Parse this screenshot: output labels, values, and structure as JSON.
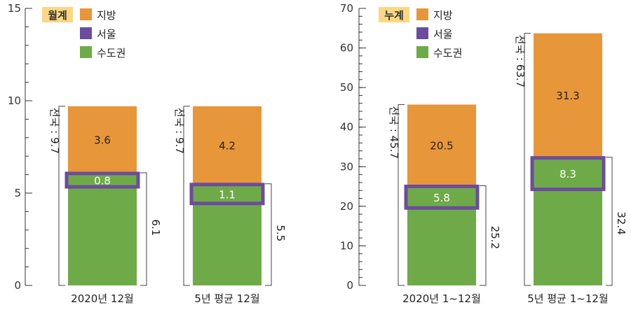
{
  "colors": {
    "jibang": "#E8963A",
    "seoul": "#6B4C9E",
    "sudogwon": "#6FAA48",
    "axis": "#333333",
    "badge": "#FCD783"
  },
  "chart_data": [
    {
      "type": "bar",
      "stacked": true,
      "badge": "월계",
      "legend": [
        "지방",
        "서울",
        "수도권"
      ],
      "ylim": [
        0,
        15
      ],
      "yticks": [
        0,
        5,
        10,
        15
      ],
      "categories": [
        "2020년 12월",
        "5년 평균 12월"
      ],
      "series": [
        {
          "name": "수도권",
          "values": [
            6.1,
            5.5
          ]
        },
        {
          "name": "지방",
          "values": [
            3.6,
            4.2
          ]
        }
      ],
      "seoul": [
        0.8,
        1.1
      ],
      "seoul_labels": [
        "0.8",
        "1.1"
      ],
      "jibang_labels": [
        "3.6",
        "4.2"
      ],
      "total_labels": [
        "전국 : 9.7",
        "전국 : 9.7"
      ],
      "sudogwon_labels": [
        "6.1",
        "5.5"
      ]
    },
    {
      "type": "bar",
      "stacked": true,
      "badge": "누계",
      "legend": [
        "지방",
        "서울",
        "수도권"
      ],
      "ylim": [
        0,
        70
      ],
      "yticks": [
        0,
        10,
        20,
        30,
        40,
        50,
        60,
        70
      ],
      "categories": [
        "2020년 1~12월",
        "5년 평균 1~12월"
      ],
      "series": [
        {
          "name": "수도권",
          "values": [
            25.2,
            32.4
          ]
        },
        {
          "name": "지방",
          "values": [
            20.5,
            31.3
          ]
        }
      ],
      "seoul": [
        5.8,
        8.3
      ],
      "seoul_labels": [
        "5.8",
        "8.3"
      ],
      "jibang_labels": [
        "20.5",
        "31.3"
      ],
      "total_labels": [
        "전국 : 45.7",
        "전국 : 63.7"
      ],
      "sudogwon_labels": [
        "25.2",
        "32.4"
      ]
    }
  ]
}
